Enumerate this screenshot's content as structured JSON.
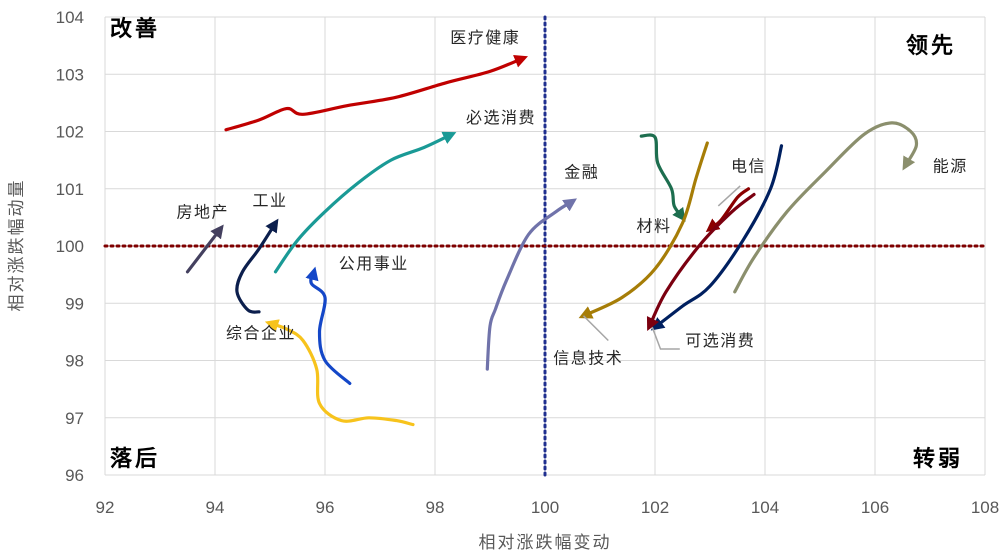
{
  "chart_data": {
    "type": "line",
    "xlabel": "相对涨跌幅变动",
    "ylabel": "相对涨跌幅动量",
    "xlim": [
      92,
      108
    ],
    "ylim": [
      96,
      104
    ],
    "x_ticks": [
      "92",
      "94",
      "96",
      "98",
      "100",
      "102",
      "104",
      "106",
      "108"
    ],
    "y_ticks": [
      "96",
      "97",
      "98",
      "99",
      "100",
      "101",
      "102",
      "103",
      "104"
    ],
    "grid": true,
    "reference_lines": {
      "x": 100,
      "y": 100,
      "x_color": "#1f2f8f",
      "y_color": "#7f0000"
    },
    "quadrants": {
      "top_left": "改善",
      "top_right": "领先",
      "bottom_left": "落后",
      "bottom_right": "转弱"
    },
    "series": [
      {
        "name": "医疗健康",
        "color": "#c00000",
        "points": [
          [
            94.2,
            102.03
          ],
          [
            94.8,
            102.2
          ],
          [
            95.3,
            102.4
          ],
          [
            95.6,
            102.3
          ],
          [
            96.4,
            102.45
          ],
          [
            97.3,
            102.6
          ],
          [
            98.2,
            102.85
          ],
          [
            99.0,
            103.05
          ],
          [
            99.6,
            103.28
          ]
        ]
      },
      {
        "name": "必选消费",
        "color": "#1a9a96",
        "points": [
          [
            95.1,
            99.55
          ],
          [
            95.5,
            100.1
          ],
          [
            96.0,
            100.6
          ],
          [
            96.6,
            101.1
          ],
          [
            97.2,
            101.5
          ],
          [
            97.8,
            101.72
          ],
          [
            98.3,
            101.95
          ]
        ]
      },
      {
        "name": "房地产",
        "color": "#44405f",
        "points": [
          [
            93.5,
            99.55
          ],
          [
            94.1,
            100.3
          ]
        ]
      },
      {
        "name": "工业",
        "color": "#0c1f4d",
        "points": [
          [
            94.8,
            98.85
          ],
          [
            94.6,
            98.88
          ],
          [
            94.4,
            99.2
          ],
          [
            94.5,
            99.55
          ],
          [
            94.8,
            99.95
          ],
          [
            95.1,
            100.4
          ]
        ]
      },
      {
        "name": "公用事业",
        "color": "#1447c8",
        "points": [
          [
            96.45,
            97.6
          ],
          [
            96.0,
            98.0
          ],
          [
            95.9,
            98.5
          ],
          [
            96.0,
            99.1
          ],
          [
            95.75,
            99.35
          ],
          [
            95.8,
            99.55
          ]
        ]
      },
      {
        "name": "综合企业",
        "color": "#f7c31c",
        "points": [
          [
            97.6,
            96.88
          ],
          [
            97.3,
            96.95
          ],
          [
            96.8,
            97.0
          ],
          [
            96.3,
            96.95
          ],
          [
            95.9,
            97.25
          ],
          [
            95.85,
            97.85
          ],
          [
            95.6,
            98.35
          ],
          [
            95.3,
            98.55
          ],
          [
            95.0,
            98.65
          ]
        ]
      },
      {
        "name": "金融",
        "color": "#7073aa",
        "points": [
          [
            98.95,
            97.85
          ],
          [
            99.0,
            98.6
          ],
          [
            99.1,
            98.9
          ],
          [
            99.3,
            99.4
          ],
          [
            99.7,
            100.2
          ],
          [
            100.2,
            100.6
          ],
          [
            100.5,
            100.78
          ]
        ]
      },
      {
        "name": "材料",
        "color": "#1d6e4f",
        "points": [
          [
            101.75,
            101.92
          ],
          [
            102.0,
            101.9
          ],
          [
            102.05,
            101.45
          ],
          [
            102.3,
            101.0
          ],
          [
            102.35,
            100.7
          ],
          [
            102.5,
            100.5
          ]
        ]
      },
      {
        "name": "信息技术",
        "color": "#a67d07",
        "points": [
          [
            102.95,
            101.8
          ],
          [
            102.75,
            101.2
          ],
          [
            102.5,
            100.4
          ],
          [
            102.0,
            99.6
          ],
          [
            101.4,
            99.1
          ],
          [
            100.7,
            98.78
          ]
        ]
      },
      {
        "name": "电信",
        "color": "#8b0000",
        "points": [
          [
            103.7,
            101.0
          ],
          [
            103.5,
            100.85
          ],
          [
            103.2,
            100.45
          ],
          [
            103.0,
            100.3
          ]
        ]
      },
      {
        "name": "可选消费",
        "color": "#002060",
        "points": [
          [
            104.3,
            101.75
          ],
          [
            104.1,
            101.0
          ],
          [
            103.6,
            100.1
          ],
          [
            103.0,
            99.3
          ],
          [
            102.5,
            98.95
          ],
          [
            102.0,
            98.58
          ]
        ]
      },
      {
        "name": "",
        "color": "#7b0010",
        "points": [
          [
            103.8,
            100.9
          ],
          [
            103.4,
            100.6
          ],
          [
            102.8,
            100.0
          ],
          [
            102.2,
            99.2
          ],
          [
            101.9,
            98.6
          ]
        ]
      },
      {
        "name": "能源",
        "color": "#8b8f6d",
        "points": [
          [
            103.45,
            99.2
          ],
          [
            103.8,
            99.8
          ],
          [
            104.4,
            100.6
          ],
          [
            105.1,
            101.3
          ],
          [
            105.8,
            101.95
          ],
          [
            106.3,
            102.15
          ],
          [
            106.65,
            102.0
          ],
          [
            106.75,
            101.75
          ],
          [
            106.55,
            101.4
          ]
        ]
      }
    ],
    "annotations": [
      {
        "text": "医疗健康",
        "x": 99.55,
        "y": 103.55,
        "anchor": "end"
      },
      {
        "text": "必选消费",
        "x": 99.2,
        "y": 102.15,
        "anchor": "middle"
      },
      {
        "text": "房地产",
        "x": 93.3,
        "y": 100.5,
        "anchor": "start"
      },
      {
        "text": "工业",
        "x": 95.0,
        "y": 100.7,
        "anchor": "middle"
      },
      {
        "text": "公用事业",
        "x": 96.25,
        "y": 99.6,
        "anchor": "start"
      },
      {
        "text": "综合企业",
        "x": 94.2,
        "y": 98.38,
        "anchor": "start"
      },
      {
        "text": "金融",
        "x": 100.35,
        "y": 101.2,
        "anchor": "start"
      },
      {
        "text": "材料",
        "x": 102.3,
        "y": 100.25,
        "anchor": "end"
      },
      {
        "text": "信息技术",
        "x": 100.15,
        "y": 97.95,
        "anchor": "start"
      },
      {
        "text": "电信",
        "x": 103.7,
        "y": 101.3,
        "anchor": "middle"
      },
      {
        "text": "可选消费",
        "x": 102.55,
        "y": 98.25,
        "anchor": "start"
      },
      {
        "text": "能源",
        "x": 107.05,
        "y": 101.3,
        "anchor": "start"
      }
    ],
    "leader_lines": [
      {
        "for": "信息技术",
        "points": [
          [
            100.7,
            98.78
          ],
          [
            101.15,
            98.35
          ]
        ]
      },
      {
        "for": "可选消费",
        "points": [
          [
            101.95,
            98.58
          ],
          [
            102.1,
            98.2
          ],
          [
            102.45,
            98.2
          ]
        ]
      },
      {
        "for": "电信",
        "points": [
          [
            103.55,
            101.05
          ],
          [
            103.15,
            100.7
          ]
        ]
      }
    ]
  }
}
